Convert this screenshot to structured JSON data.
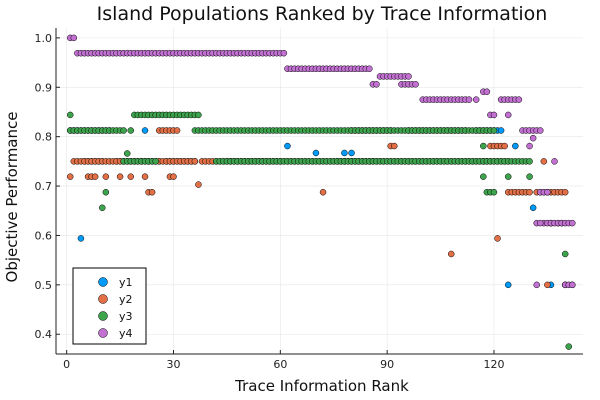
{
  "chart_data": {
    "type": "scatter",
    "title": "Island Populations Ranked by Trace Information",
    "xlabel": "Trace Information Rank",
    "ylabel": "Objective Performance",
    "xlim": [
      -3,
      145
    ],
    "ylim": [
      0.36,
      1.02
    ],
    "xticks": [
      0,
      30,
      60,
      90,
      120
    ],
    "yticks": [
      0.4,
      0.5,
      0.6,
      0.7,
      0.8,
      0.9,
      1.0
    ],
    "grid": true,
    "legend": "bottom-left",
    "colors": {
      "y1": "#009af9",
      "y2": "#e26f46",
      "y3": "#3da44d",
      "y4": "#c271d2"
    },
    "series": [
      {
        "name": "y1",
        "segments": [
          {
            "x_start": 1,
            "x_end": 12,
            "y": 0.8125
          },
          {
            "x_start": 5,
            "x_end": 10,
            "y": 0.75
          },
          {
            "x_start": 14,
            "x_end": 26,
            "y": 0.75
          },
          {
            "x_start": 28,
            "x_end": 36,
            "y": 0.75
          },
          {
            "x_start": 45,
            "x_end": 60,
            "y": 0.75
          },
          {
            "x_start": 76,
            "x_end": 118,
            "y": 0.75
          },
          {
            "x_start": 115,
            "x_end": 122,
            "y": 0.8125
          }
        ],
        "points": [
          [
            4,
            0.594
          ],
          [
            22,
            0.8125
          ],
          [
            62,
            0.781
          ],
          [
            70,
            0.767
          ],
          [
            78,
            0.767
          ],
          [
            80,
            0.767
          ],
          [
            126,
            0.781
          ],
          [
            124,
            0.5
          ],
          [
            131,
            0.656
          ],
          [
            136,
            0.5
          ],
          [
            140,
            0.5
          ],
          [
            142,
            0.5
          ]
        ]
      },
      {
        "name": "y2",
        "segments": [
          {
            "x_start": 2,
            "x_end": 36,
            "y": 0.75
          },
          {
            "x_start": 38,
            "x_end": 86,
            "y": 0.75
          },
          {
            "x_start": 80,
            "x_end": 91,
            "y": 0.8125
          },
          {
            "x_start": 96,
            "x_end": 112,
            "y": 0.8125
          },
          {
            "x_start": 119,
            "x_end": 123,
            "y": 0.781
          },
          {
            "x_start": 117,
            "x_end": 124,
            "y": 0.75
          },
          {
            "x_start": 124,
            "x_end": 130,
            "y": 0.6875
          },
          {
            "x_start": 132,
            "x_end": 140,
            "y": 0.6875
          }
        ],
        "points": [
          [
            1,
            0.719
          ],
          [
            6,
            0.719
          ],
          [
            7,
            0.719
          ],
          [
            8,
            0.719
          ],
          [
            11,
            0.719
          ],
          [
            15,
            0.719
          ],
          [
            18,
            0.719
          ],
          [
            23,
            0.6875
          ],
          [
            24,
            0.6875
          ],
          [
            22,
            0.719
          ],
          [
            29,
            0.719
          ],
          [
            30,
            0.719
          ],
          [
            37,
            0.703
          ],
          [
            26,
            0.8125
          ],
          [
            27,
            0.8125
          ],
          [
            28,
            0.8125
          ],
          [
            29,
            0.8125
          ],
          [
            30,
            0.8125
          ],
          [
            31,
            0.8125
          ],
          [
            72,
            0.6875
          ],
          [
            91,
            0.781
          ],
          [
            92,
            0.781
          ],
          [
            108,
            0.5625
          ],
          [
            121,
            0.594
          ],
          [
            134,
            0.75
          ],
          [
            135,
            0.5
          ],
          [
            136,
            0.625
          ],
          [
            138,
            0.625
          ],
          [
            140,
            0.5
          ]
        ]
      },
      {
        "name": "y3",
        "segments": [
          {
            "x_start": 1,
            "x_end": 15,
            "y": 0.8125
          },
          {
            "x_start": 16,
            "x_end": 25,
            "y": 0.75
          },
          {
            "x_start": 19,
            "x_end": 37,
            "y": 0.844
          },
          {
            "x_start": 36,
            "x_end": 120,
            "y": 0.8125
          },
          {
            "x_start": 42,
            "x_end": 130,
            "y": 0.75
          }
        ],
        "points": [
          [
            1,
            0.844
          ],
          [
            10,
            0.656
          ],
          [
            11,
            0.6875
          ],
          [
            17,
            0.766
          ],
          [
            16,
            0.8125
          ],
          [
            18,
            0.8125
          ],
          [
            117,
            0.719
          ],
          [
            117,
            0.781
          ],
          [
            118,
            0.6875
          ],
          [
            119,
            0.6875
          ],
          [
            120,
            0.6875
          ],
          [
            124,
            0.719
          ],
          [
            130,
            0.719
          ],
          [
            135,
            0.6875
          ],
          [
            136,
            0.625
          ],
          [
            139,
            0.625
          ],
          [
            140,
            0.5625
          ],
          [
            141,
            0.375
          ]
        ]
      },
      {
        "name": "y4",
        "segments": [
          {
            "x_start": 3,
            "x_end": 61,
            "y": 0.969
          },
          {
            "x_start": 62,
            "x_end": 85,
            "y": 0.9375
          },
          {
            "x_start": 88,
            "x_end": 96,
            "y": 0.922
          },
          {
            "x_start": 94,
            "x_end": 98,
            "y": 0.906
          },
          {
            "x_start": 100,
            "x_end": 113,
            "y": 0.875
          },
          {
            "x_start": 122,
            "x_end": 127,
            "y": 0.875
          },
          {
            "x_start": 128,
            "x_end": 132,
            "y": 0.8125
          },
          {
            "x_start": 134,
            "x_end": 142,
            "y": 0.625
          }
        ],
        "points": [
          [
            1,
            1.0
          ],
          [
            2,
            1.0
          ],
          [
            86,
            0.906
          ],
          [
            87,
            0.906
          ],
          [
            117,
            0.891
          ],
          [
            118,
            0.891
          ],
          [
            119,
            0.844
          ],
          [
            120,
            0.844
          ],
          [
            115,
            0.875
          ],
          [
            124,
            0.844
          ],
          [
            133,
            0.8125
          ],
          [
            131,
            0.797
          ],
          [
            130,
            0.781
          ],
          [
            133,
            0.6875
          ],
          [
            134,
            0.6875
          ],
          [
            135,
            0.6875
          ],
          [
            137,
            0.75
          ],
          [
            132,
            0.625
          ],
          [
            133,
            0.625
          ],
          [
            132,
            0.5
          ],
          [
            140,
            0.5
          ],
          [
            141,
            0.5
          ],
          [
            142,
            0.5
          ]
        ]
      }
    ]
  }
}
